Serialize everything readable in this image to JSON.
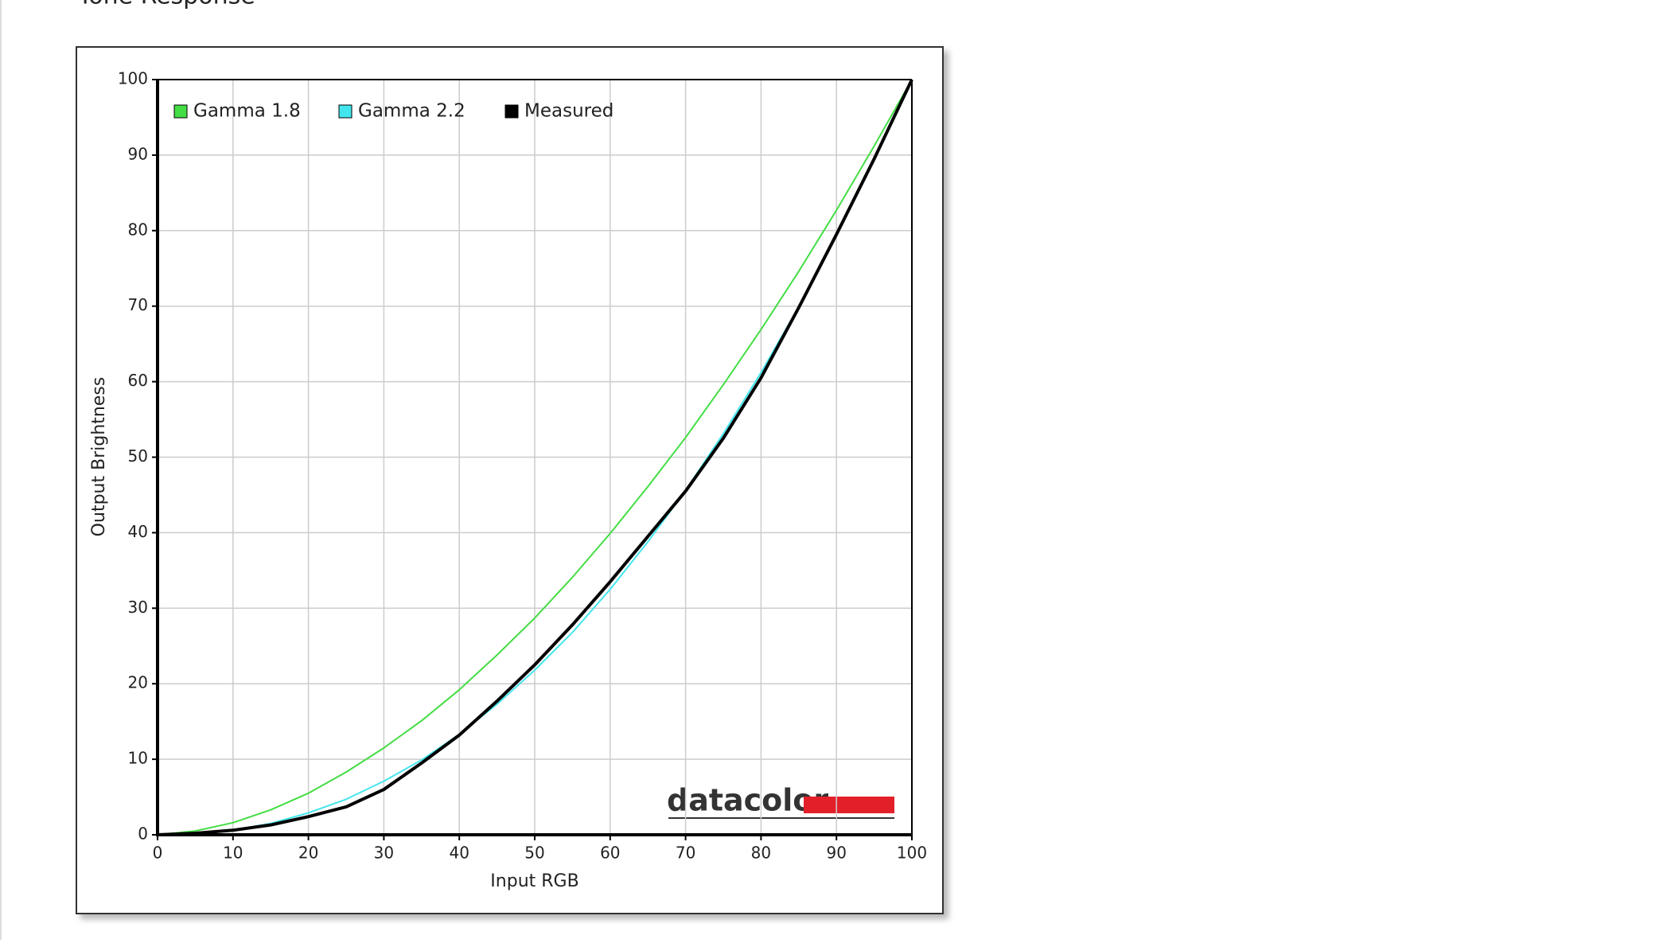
{
  "page_heading": "Tone Response",
  "chart_data": {
    "type": "line",
    "title": null,
    "x_label": "Input RGB",
    "y_label": "Output Brightness",
    "logo": "datacolor",
    "x": [
      0,
      5,
      10,
      15,
      20,
      25,
      30,
      35,
      40,
      45,
      50,
      55,
      60,
      65,
      70,
      75,
      80,
      85,
      90,
      95,
      100
    ],
    "series": [
      {
        "name": "Gamma 1.8",
        "color": "#44dd44",
        "width": 2,
        "values": [
          0,
          0.5,
          1.6,
          3.3,
          5.5,
          8.3,
          11.5,
          15.1,
          19.2,
          23.8,
          28.7,
          34.1,
          39.9,
          46.1,
          52.6,
          59.6,
          66.9,
          74.6,
          82.7,
          91.2,
          100
        ]
      },
      {
        "name": "Gamma 2.2",
        "color": "#44e6ee",
        "width": 2,
        "values": [
          0,
          0.1,
          0.6,
          1.5,
          2.9,
          4.7,
          7.1,
          9.9,
          13.3,
          17.3,
          21.8,
          26.8,
          32.5,
          38.8,
          45.6,
          53.1,
          61.2,
          69.9,
          79.3,
          89.3,
          100
        ]
      },
      {
        "name": "Measured",
        "color": "#000000",
        "width": 4,
        "values": [
          0,
          0.2,
          0.6,
          1.3,
          2.4,
          3.7,
          6.0,
          9.5,
          13.2,
          17.7,
          22.5,
          27.8,
          33.5,
          39.5,
          45.5,
          52.5,
          60.5,
          69.8,
          79.5,
          89.5,
          100
        ]
      }
    ],
    "xlim": [
      0,
      100
    ],
    "ylim": [
      0,
      100
    ],
    "xticks": [
      0,
      10,
      20,
      30,
      40,
      50,
      60,
      70,
      80,
      90,
      100
    ],
    "yticks": [
      0,
      10,
      20,
      30,
      40,
      50,
      60,
      70,
      80,
      90,
      100
    ],
    "grid": true,
    "legend": "top-left"
  }
}
